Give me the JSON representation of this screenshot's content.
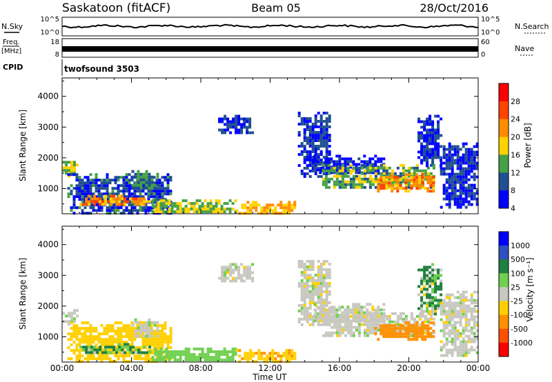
{
  "header": {
    "station": "Saskatoon (fitACF)",
    "beam": "Beam 05",
    "date": "28/Oct/2016"
  },
  "status_panels": {
    "nsky": {
      "label": "N.Sky",
      "right_label": "N.Search",
      "left_ticks": [
        "10^5",
        "10^0"
      ],
      "right_ticks": [
        "10^5",
        "10^0"
      ]
    },
    "freq": {
      "label_line1": "Freq.",
      "label_line2": "[MHz]",
      "right_label": "Nave",
      "left_ticks": [
        "18",
        "8"
      ],
      "right_ticks": [
        "60",
        "0"
      ]
    },
    "cpid": {
      "label": "CPID",
      "value": "twofsound 3503"
    }
  },
  "chart_data": [
    {
      "type": "heatmap",
      "panel": "power",
      "xlabel": "",
      "ylabel": "Slant Range [km]",
      "x_ticks": [
        "00:00",
        "04:00",
        "08:00",
        "12:00",
        "16:00",
        "20:00",
        "00:00"
      ],
      "xlim_hours": [
        0,
        24
      ],
      "ylim": [
        180,
        4600
      ],
      "y_ticks": [
        1000,
        2000,
        3000,
        4000
      ],
      "colorbar": {
        "label": "Power [dB]",
        "ticks": [
          "28",
          "24",
          "20",
          "16",
          "12",
          "8",
          "4"
        ],
        "colors": [
          "#ff0000",
          "#ff4400",
          "#ff8c00",
          "#ffd200",
          "#46a046",
          "#205090",
          "#0000ff"
        ],
        "range": [
          0,
          32
        ]
      },
      "regions": [
        {
          "t0": 0.0,
          "t1": 0.8,
          "r0": 1450,
          "r1": 1900,
          "value": 16
        },
        {
          "t0": 0.3,
          "t1": 6.3,
          "r0": 180,
          "r1": 1500,
          "value": 9
        },
        {
          "t0": 1.0,
          "t1": 5.0,
          "r0": 500,
          "r1": 800,
          "value": 22
        },
        {
          "t0": 4.0,
          "t1": 5.5,
          "r0": 1000,
          "r1": 1600,
          "value": 12
        },
        {
          "t0": 5.0,
          "t1": 10.0,
          "r0": 250,
          "r1": 650,
          "value": 16
        },
        {
          "t0": 10.0,
          "t1": 13.5,
          "r0": 180,
          "r1": 600,
          "value": 20
        },
        {
          "t0": 9.0,
          "t1": 11.0,
          "r0": 2800,
          "r1": 3400,
          "value": 8
        },
        {
          "t0": 13.6,
          "t1": 15.5,
          "r0": 1400,
          "r1": 3500,
          "value": 8
        },
        {
          "t0": 14.5,
          "t1": 18.5,
          "r0": 1500,
          "r1": 2100,
          "value": 6
        },
        {
          "t0": 15.0,
          "t1": 21.5,
          "r0": 1050,
          "r1": 1800,
          "value": 14
        },
        {
          "t0": 18.0,
          "t1": 21.5,
          "r0": 950,
          "r1": 1500,
          "value": 22
        },
        {
          "t0": 20.5,
          "t1": 21.8,
          "r0": 1700,
          "r1": 3400,
          "value": 8
        },
        {
          "t0": 21.8,
          "t1": 24.0,
          "r0": 400,
          "r1": 2500,
          "value": 8
        }
      ]
    },
    {
      "type": "heatmap",
      "panel": "velocity",
      "xlabel": "Time UT",
      "ylabel": "Slant Range [km]",
      "x_ticks": [
        "00:00",
        "04:00",
        "08:00",
        "12:00",
        "16:00",
        "20:00",
        "00:00"
      ],
      "xlim_hours": [
        0,
        24
      ],
      "ylim": [
        180,
        4600
      ],
      "y_ticks": [
        1000,
        2000,
        3000,
        4000
      ],
      "colorbar": {
        "label": "Velocity [m s⁻¹]",
        "ticks": [
          "1000",
          "500",
          "100",
          "25",
          "-25",
          "-100",
          "-500",
          "-1000"
        ],
        "colors": [
          "#0000ff",
          "#3050c0",
          "#208040",
          "#70d050",
          "#c8c8c0",
          "#ffd000",
          "#ff9000",
          "#ff5000",
          "#ff0000"
        ]
      },
      "regions": [
        {
          "t0": 0.0,
          "t1": 0.8,
          "r0": 1450,
          "r1": 1900,
          "value": 0
        },
        {
          "t0": 0.3,
          "t1": 6.3,
          "r0": 180,
          "r1": 1500,
          "value": -60
        },
        {
          "t0": 1.0,
          "t1": 5.0,
          "r0": 500,
          "r1": 800,
          "value": 150
        },
        {
          "t0": 4.0,
          "t1": 5.5,
          "r0": 1000,
          "r1": 1600,
          "value": 0
        },
        {
          "t0": 5.0,
          "t1": 10.0,
          "r0": 250,
          "r1": 650,
          "value": 60
        },
        {
          "t0": 10.0,
          "t1": 13.5,
          "r0": 180,
          "r1": 600,
          "value": -80
        },
        {
          "t0": 9.0,
          "t1": 11.0,
          "r0": 2800,
          "r1": 3400,
          "value": 0
        },
        {
          "t0": 13.6,
          "t1": 15.5,
          "r0": 1400,
          "r1": 3500,
          "value": 0
        },
        {
          "t0": 14.5,
          "t1": 18.5,
          "r0": 1500,
          "r1": 2100,
          "value": 0
        },
        {
          "t0": 15.0,
          "t1": 21.5,
          "r0": 1050,
          "r1": 1800,
          "value": 0
        },
        {
          "t0": 18.0,
          "t1": 21.5,
          "r0": 950,
          "r1": 1500,
          "value": -300
        },
        {
          "t0": 20.5,
          "t1": 21.8,
          "r0": 1700,
          "r1": 3400,
          "value": 150
        },
        {
          "t0": 21.8,
          "t1": 24.0,
          "r0": 400,
          "r1": 2500,
          "value": 0
        }
      ]
    }
  ]
}
